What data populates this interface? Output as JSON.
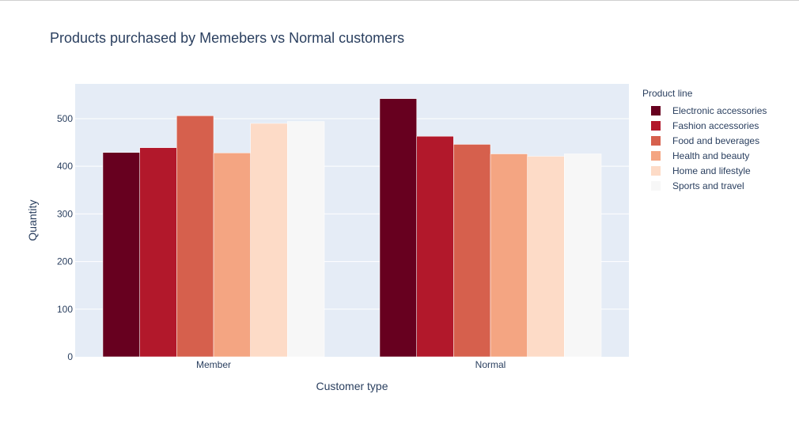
{
  "chart_data": {
    "type": "bar",
    "title": "Products purchased by Memebers vs Normal customers",
    "xlabel": "Customer type",
    "ylabel": "Quantity",
    "categories": [
      "Member",
      "Normal"
    ],
    "ylim": [
      0,
      573
    ],
    "yticks": [
      0,
      100,
      200,
      300,
      400,
      500
    ],
    "grid": true,
    "legend_title": "Product line",
    "legend_position": "right",
    "series": [
      {
        "name": "Electronic accessories",
        "color": "#67001f",
        "values": [
          429,
          542
        ]
      },
      {
        "name": "Fashion accessories",
        "color": "#b2182b",
        "values": [
          439,
          463
        ]
      },
      {
        "name": "Food and beverages",
        "color": "#d6604d",
        "values": [
          506,
          446
        ]
      },
      {
        "name": "Health and beauty",
        "color": "#f4a582",
        "values": [
          428,
          426
        ]
      },
      {
        "name": "Home and lifestyle",
        "color": "#fddbc7",
        "values": [
          490,
          421
        ]
      },
      {
        "name": "Sports and travel",
        "color": "#f7f7f7",
        "values": [
          494,
          426
        ]
      }
    ]
  }
}
